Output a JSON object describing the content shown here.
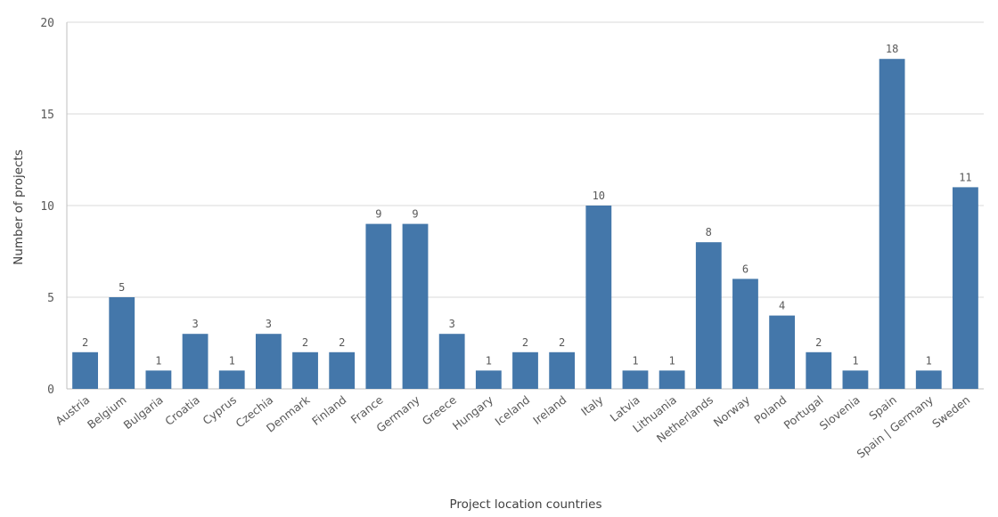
{
  "chart_data": {
    "type": "bar",
    "categories": [
      "Austria",
      "Belgium",
      "Bulgaria",
      "Croatia",
      "Cyprus",
      "Czechia",
      "Denmark",
      "Finland",
      "France",
      "Germany",
      "Greece",
      "Hungary",
      "Iceland",
      "Ireland",
      "Italy",
      "Latvia",
      "Lithuania",
      "Netherlands",
      "Norway",
      "Poland",
      "Portugal",
      "Slovenia",
      "Spain",
      "Spain | Germany",
      "Sweden"
    ],
    "values": [
      2,
      5,
      1,
      3,
      1,
      3,
      2,
      2,
      9,
      9,
      3,
      1,
      2,
      2,
      10,
      1,
      1,
      8,
      6,
      4,
      2,
      1,
      18,
      1,
      11
    ],
    "xlabel": "Project location countries",
    "ylabel": "Number of projects",
    "ylim": [
      0,
      20
    ],
    "yticks": [
      0,
      5,
      10,
      15,
      20
    ],
    "grid": true,
    "data_labels": true,
    "bar_color": "#4477aa"
  }
}
